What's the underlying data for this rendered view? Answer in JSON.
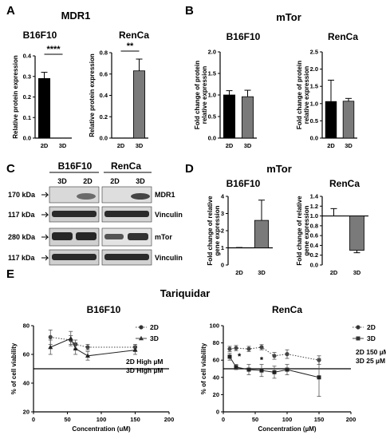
{
  "panel_letters": {
    "a": "A",
    "b": "B",
    "c": "C",
    "d": "D",
    "e": "E"
  },
  "section_titles": {
    "mdr1": "MDR1",
    "mtor_b": "mTor",
    "mtor_d": "mTor",
    "tariquidar": "Tariquidar"
  },
  "western_blot": {
    "group_headers": [
      "B16F10",
      "RenCa"
    ],
    "lanes": [
      "3D",
      "2D",
      "2D",
      "3D"
    ],
    "kda_labels": [
      "170  kDa",
      "117 kDa",
      "280 kDa",
      "117 kDa"
    ],
    "protein_labels": [
      "MDR1",
      "Vinculin",
      "mTor",
      "Vinculin"
    ]
  },
  "colors": {
    "black": "#000000",
    "gray": "#7a7a7a",
    "dotted": "#555555"
  },
  "chart_data": [
    {
      "id": "A1",
      "type": "bar",
      "title": "B16F10",
      "categories": [
        "2D",
        "3D"
      ],
      "values": [
        0.29,
        0
      ],
      "errors": [
        0.03,
        0
      ],
      "fills": [
        "#000000",
        "#7a7a7a"
      ],
      "ylabel": "Relative protein expression",
      "ylim": [
        0,
        0.4
      ],
      "yticks": [
        "0.0",
        "0.1",
        "0.2",
        "0.3",
        "0.4"
      ],
      "significance": "****"
    },
    {
      "id": "A2",
      "type": "bar",
      "title": "RenCa",
      "categories": [
        "2D",
        "3D"
      ],
      "values": [
        0,
        0.63
      ],
      "errors": [
        0,
        0.11
      ],
      "fills": [
        "#000000",
        "#7a7a7a"
      ],
      "ylabel": "Relative protein expression",
      "ylim": [
        0,
        0.8
      ],
      "yticks": [
        "0.0",
        "0.2",
        "0.4",
        "0.6",
        "0.8"
      ],
      "significance": "**"
    },
    {
      "id": "B1",
      "type": "bar",
      "title": "B16F10",
      "categories": [
        "2D",
        "3D"
      ],
      "values": [
        1.0,
        0.96
      ],
      "errors": [
        0.1,
        0.15
      ],
      "fills": [
        "#000000",
        "#7a7a7a"
      ],
      "ylabel": "Fold change of protein relative expression",
      "ylim": [
        0,
        2.0
      ],
      "yticks": [
        "0.0",
        "0.5",
        "1.0",
        "1.5",
        "2.0"
      ]
    },
    {
      "id": "B2",
      "type": "bar",
      "title": "RenCa",
      "categories": [
        "2D",
        "3D"
      ],
      "values": [
        1.06,
        1.07
      ],
      "errors": [
        0.62,
        0.08
      ],
      "fills": [
        "#000000",
        "#7a7a7a"
      ],
      "ylabel": "Fold change of protein relative expression",
      "ylim": [
        0,
        2.5
      ],
      "yticks": [
        "0.0",
        "0.5",
        "1.0",
        "1.5",
        "2.0",
        "2.5"
      ]
    },
    {
      "id": "D1",
      "type": "bar",
      "title": "B16F10",
      "categories": [
        "2D",
        "3D"
      ],
      "values": [
        1.0,
        2.6
      ],
      "errors": [
        0.02,
        1.18
      ],
      "fills": [
        "#000000",
        "#7a7a7a"
      ],
      "ylabel": "Fold change of relative gene expression",
      "ylim": [
        0,
        4
      ],
      "yticks": [
        "0",
        "1",
        "2",
        "3",
        "4"
      ],
      "baseline": 1
    },
    {
      "id": "D2",
      "type": "bar",
      "title": "RenCa",
      "categories": [
        "2D",
        "3D"
      ],
      "values": [
        1.0,
        0.3
      ],
      "errors": [
        0.15,
        0.05
      ],
      "fills": [
        "#000000",
        "#7a7a7a"
      ],
      "ylabel": "Fold change of relative gene expression",
      "ylim": [
        0,
        1.4
      ],
      "yticks": [
        "0.0",
        "0.2",
        "0.4",
        "0.6",
        "0.8",
        "1.0",
        "1.2",
        "1.4"
      ],
      "baseline": 1
    },
    {
      "id": "E1",
      "type": "line",
      "title": "B16F10",
      "xlabel": "Concentration (uM)",
      "ylabel": "% of cell viability",
      "xlim": [
        0,
        200
      ],
      "ylim": [
        20,
        80
      ],
      "xticks": [
        "0",
        "50",
        "100",
        "150",
        "200"
      ],
      "yticks": [
        "20",
        "40",
        "60",
        "80"
      ],
      "hline": 50,
      "series": [
        {
          "name": "2D",
          "marker": "circle",
          "style": "dotted",
          "x": [
            25,
            55,
            62,
            80,
            150
          ],
          "y": [
            72,
            70,
            67,
            65,
            65
          ],
          "err": [
            5,
            3,
            3,
            2,
            2
          ]
        },
        {
          "name": "3D",
          "marker": "triangle",
          "style": "solid",
          "x": [
            25,
            55,
            62,
            80,
            150
          ],
          "y": [
            65,
            71,
            64,
            59,
            63
          ],
          "err": [
            5,
            5,
            4,
            3,
            3
          ]
        }
      ],
      "notes": [
        "2D High µM",
        "3D High µM"
      ]
    },
    {
      "id": "E2",
      "type": "line",
      "title": "RenCa",
      "xlabel": "Concentration (µM)",
      "ylabel": "% of cell viability",
      "xlim": [
        0,
        200
      ],
      "ylim": [
        0,
        100
      ],
      "xticks": [
        "0",
        "50",
        "100",
        "150",
        "200"
      ],
      "yticks": [
        "0",
        "20",
        "40",
        "60",
        "80",
        "100"
      ],
      "hline": 50,
      "series": [
        {
          "name": "2D",
          "marker": "circle",
          "style": "dotted",
          "x": [
            10,
            20,
            40,
            60,
            80,
            100,
            150
          ],
          "y": [
            73,
            74,
            73,
            75,
            65,
            67,
            60
          ],
          "err": [
            3,
            3,
            3,
            3,
            4,
            5,
            5
          ]
        },
        {
          "name": "3D",
          "marker": "square",
          "style": "solid",
          "x": [
            10,
            20,
            40,
            60,
            80,
            100,
            150
          ],
          "y": [
            64,
            52,
            49,
            48,
            46,
            49,
            40
          ],
          "err": [
            4,
            3,
            6,
            7,
            7,
            6,
            22
          ]
        }
      ],
      "stars": [
        "*",
        "*"
      ],
      "notes": [
        "2D 150 µM",
        "3D 25 µM"
      ]
    }
  ]
}
